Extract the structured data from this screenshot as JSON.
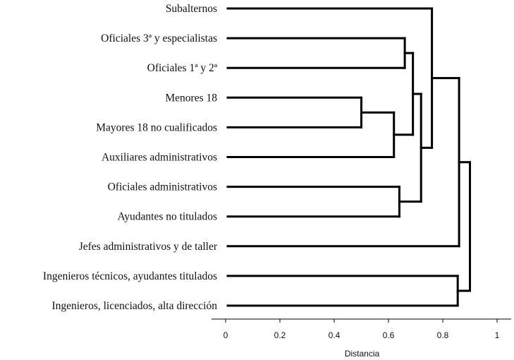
{
  "chart_data": {
    "type": "dendrogram",
    "xlabel": "Distancia",
    "xlim": [
      0,
      1
    ],
    "x_ticks": [
      {
        "value": 0,
        "label": "0"
      },
      {
        "value": 0.2,
        "label": "0.2"
      },
      {
        "value": 0.4,
        "label": "0.4"
      },
      {
        "value": 0.6,
        "label": "0.6"
      },
      {
        "value": 0.8,
        "label": "0.8"
      },
      {
        "value": 1,
        "label": "1"
      }
    ],
    "leaves": [
      "Subalternos",
      "Oficiales 3ª y especialistas",
      "Oficiales 1ª y 2ª",
      "Menores 18",
      "Mayores 18 no cualificados",
      "Auxiliares administrativos",
      "Oficiales administrativos",
      "Ayudantes no titulados",
      "Jefes administrativos y de taller",
      "Ingenieros técnicos, ayudantes titulados",
      "Ingenieros, licenciados, alta dirección"
    ],
    "merges": [
      {
        "id": "c1",
        "children": [
          "Menores 18",
          "Mayores 18 no cualificados"
        ],
        "distance": 0.5
      },
      {
        "id": "c2",
        "children": [
          "c1",
          "Auxiliares administrativos"
        ],
        "distance": 0.62
      },
      {
        "id": "c3",
        "children": [
          "Oficiales 3ª y especialistas",
          "Oficiales 1ª y 2ª"
        ],
        "distance": 0.66
      },
      {
        "id": "c4",
        "children": [
          "Oficiales administrativos",
          "Ayudantes no titulados"
        ],
        "distance": 0.64
      },
      {
        "id": "c5",
        "children": [
          "c3",
          "c2"
        ],
        "distance": 0.69
      },
      {
        "id": "c6",
        "children": [
          "c5",
          "c4"
        ],
        "distance": 0.72
      },
      {
        "id": "c7",
        "children": [
          "Subalternos",
          "c6"
        ],
        "distance": 0.76
      },
      {
        "id": "c8",
        "children": [
          "Ingenieros técnicos, ayudantes titulados",
          "Ingenieros, licenciados, alta dirección"
        ],
        "distance": 0.855
      },
      {
        "id": "c9",
        "children": [
          "c7",
          "Jefes administrativos y de taller"
        ],
        "distance": 0.86
      },
      {
        "id": "c10",
        "children": [
          "c9",
          "c8"
        ],
        "distance": 0.9
      }
    ]
  }
}
